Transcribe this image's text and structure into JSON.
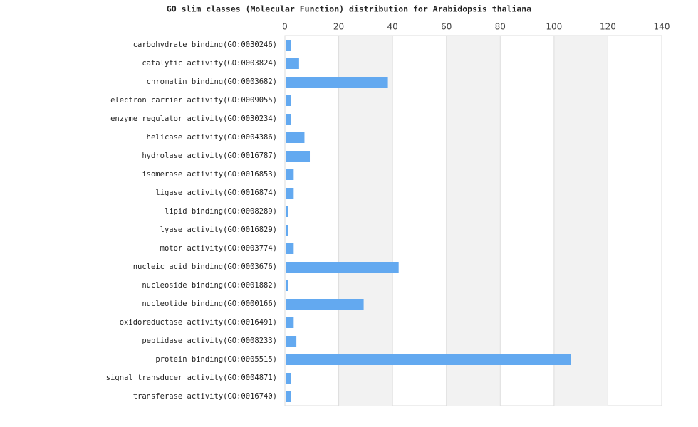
{
  "chart_data": {
    "type": "bar",
    "orientation": "horizontal",
    "title": "GO slim classes (Molecular Function) distribution for Arabidopsis thaliana",
    "categories": [
      "carbohydrate binding(GO:0030246)",
      "catalytic activity(GO:0003824)",
      "chromatin binding(GO:0003682)",
      "electron carrier activity(GO:0009055)",
      "enzyme regulator activity(GO:0030234)",
      "helicase activity(GO:0004386)",
      "hydrolase activity(GO:0016787)",
      "isomerase activity(GO:0016853)",
      "ligase activity(GO:0016874)",
      "lipid binding(GO:0008289)",
      "lyase activity(GO:0016829)",
      "motor activity(GO:0003774)",
      "nucleic acid binding(GO:0003676)",
      "nucleoside binding(GO:0001882)",
      "nucleotide binding(GO:0000166)",
      "oxidoreductase activity(GO:0016491)",
      "peptidase activity(GO:0008233)",
      "protein binding(GO:0005515)",
      "signal transducer activity(GO:0004871)",
      "transferase activity(GO:0016740)"
    ],
    "values": [
      2,
      5,
      38,
      2,
      2,
      7,
      9,
      3,
      3,
      1,
      1,
      3,
      42,
      1,
      29,
      3,
      4,
      106,
      2,
      2
    ],
    "color": "#63a9f0",
    "xlim": [
      0,
      140
    ],
    "xticks": [
      0,
      20,
      40,
      60,
      80,
      100,
      120,
      140
    ],
    "grid": true
  }
}
